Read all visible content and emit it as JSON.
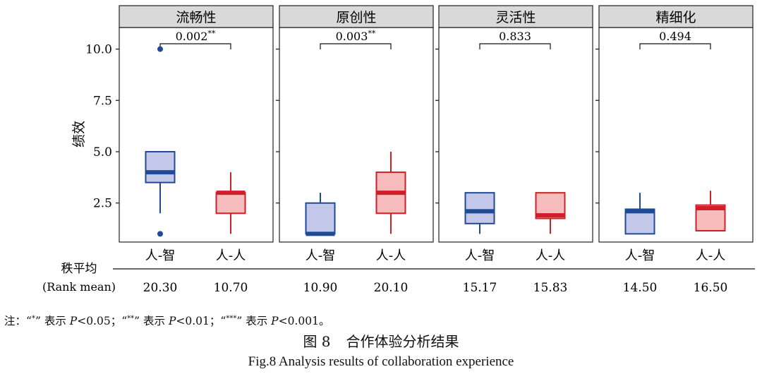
{
  "chart_data": {
    "type": "box",
    "ylabel": "绩效",
    "ylim": [
      0.6,
      11.05
    ],
    "yticks": [
      2.5,
      5.0,
      7.5,
      10.0
    ],
    "ytick_labels": [
      "2.5",
      "5.0",
      "7.5",
      "10.0"
    ],
    "categories": [
      "人-智",
      "人-人"
    ],
    "series_colors": {
      "fill": [
        "#c3c8ea",
        "#f7bcbc"
      ],
      "stroke": [
        "#1f4a94",
        "#d21e28"
      ]
    },
    "panels": [
      {
        "title": "流畅性",
        "p_value": "0.002",
        "p_stars": "**",
        "boxes": [
          {
            "category": "人-智",
            "q1": 3.5,
            "median": 4.0,
            "q3": 5.0,
            "whisker_low": 2.0,
            "whisker_high": 5.0,
            "outliers": [
              10.0,
              1.0
            ]
          },
          {
            "category": "人-人",
            "q1": 2.0,
            "median": 3.0,
            "q3": 3.0,
            "whisker_low": 1.0,
            "whisker_high": 4.0,
            "outliers": []
          }
        ],
        "rank_means": [
          "20.30",
          "10.70"
        ]
      },
      {
        "title": "原创性",
        "p_value": "0.003",
        "p_stars": "**",
        "boxes": [
          {
            "category": "人-智",
            "q1": 1.0,
            "median": 1.0,
            "q3": 2.5,
            "whisker_low": 1.0,
            "whisker_high": 3.0,
            "outliers": []
          },
          {
            "category": "人-人",
            "q1": 2.0,
            "median": 3.0,
            "q3": 4.0,
            "whisker_low": 1.0,
            "whisker_high": 5.0,
            "outliers": []
          }
        ],
        "rank_means": [
          "10.90",
          "20.10"
        ]
      },
      {
        "title": "灵活性",
        "p_value": "0.833",
        "p_stars": "",
        "boxes": [
          {
            "category": "人-智",
            "q1": 1.5,
            "median": 2.1,
            "q3": 3.0,
            "whisker_low": 1.0,
            "whisker_high": 3.0,
            "outliers": []
          },
          {
            "category": "人-人",
            "q1": 1.75,
            "median": 1.9,
            "q3": 3.0,
            "whisker_low": 1.0,
            "whisker_high": 3.0,
            "outliers": []
          }
        ],
        "rank_means": [
          "15.17",
          "15.83"
        ]
      },
      {
        "title": "精细化",
        "p_value": "0.494",
        "p_stars": "",
        "boxes": [
          {
            "category": "人-智",
            "q1": 1.0,
            "median": 2.1,
            "q3": 2.2,
            "whisker_low": 1.0,
            "whisker_high": 3.0,
            "outliers": []
          },
          {
            "category": "人-人",
            "q1": 1.15,
            "median": 2.25,
            "q3": 2.4,
            "whisker_low": 1.15,
            "whisker_high": 3.1,
            "outliers": []
          }
        ],
        "rank_means": [
          "14.50",
          "16.50"
        ]
      }
    ],
    "rank_row_label": "秩平均",
    "rank_row_label_en": "(Rank mean)"
  },
  "caption": {
    "figure_no": "图 8",
    "title_zh": "合作体验分析结果",
    "title_en": "Fig.8 Analysis results of collaboration experience"
  },
  "note": {
    "prefix": "注：",
    "items": [
      {
        "stars": "*",
        "text": "表示",
        "p": "P",
        "cond": "<0.05；"
      },
      {
        "stars": "**",
        "text": "表示",
        "p": "P",
        "cond": "<0.01；"
      },
      {
        "stars": "***",
        "text": "表示",
        "p": "P",
        "cond": "<0.001。"
      }
    ]
  }
}
